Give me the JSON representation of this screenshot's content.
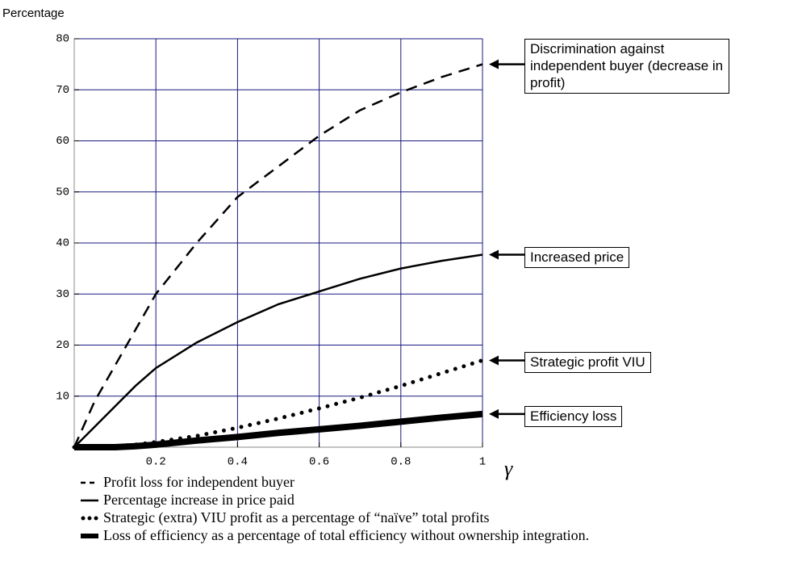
{
  "chart_data": {
    "type": "line",
    "ylabel": "Percentage",
    "xlabel": "γ",
    "x": [
      0,
      0.05,
      0.1,
      0.15,
      0.2,
      0.3,
      0.4,
      0.5,
      0.6,
      0.7,
      0.8,
      0.9,
      1
    ],
    "series": [
      {
        "name": "Profit loss for independent buyer",
        "color": "#000000",
        "style": "dashed",
        "width": 2.5,
        "values": [
          0,
          9,
          16,
          23,
          30,
          40,
          49,
          55,
          61,
          66,
          69.5,
          72.5,
          75
        ]
      },
      {
        "name": "Percentage increase in price paid",
        "color": "#000000",
        "style": "solid",
        "width": 2.5,
        "values": [
          0,
          4,
          8,
          12,
          15.5,
          20.5,
          24.5,
          28,
          30.5,
          33,
          35,
          36.5,
          37.7
        ]
      },
      {
        "name": "Strategic (extra) VIU profit as a percentage of “naïve” total profits",
        "color": "#000000",
        "style": "dotted",
        "width": 5,
        "values": [
          0,
          0,
          0.2,
          0.5,
          1,
          2.2,
          3.8,
          5.6,
          7.6,
          9.7,
          12,
          14.5,
          17
        ]
      },
      {
        "name": "Loss of efficiency as a percentage of total efficiency without ownership integration.",
        "color": "#000000",
        "style": "solid",
        "width": 8,
        "values": [
          0,
          0,
          0,
          0.2,
          0.5,
          1.3,
          2,
          2.8,
          3.5,
          4.2,
          5,
          5.8,
          6.5
        ]
      }
    ],
    "annotations": [
      "Discrimination against independent buyer (decrease in profit)",
      "Increased price",
      "Strategic profit VIU",
      "Efficiency loss"
    ],
    "xlim": [
      0,
      1
    ],
    "xticks": [
      0.2,
      0.4,
      0.6,
      0.8,
      1
    ],
    "ylim": [
      0,
      80
    ],
    "yticks": [
      10,
      20,
      30,
      40,
      50,
      60,
      70,
      80
    ],
    "grid": true,
    "grid_color": "#1a1a80"
  }
}
